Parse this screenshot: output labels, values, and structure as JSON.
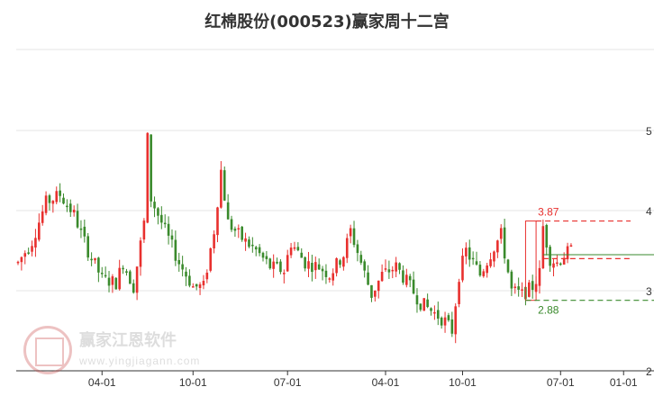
{
  "title": "红棉股份(000523)赢家周十二宫",
  "watermark": {
    "name": "赢家江恩软件",
    "url": "www.yingjiagann.com"
  },
  "colors": {
    "up": "#e8302e",
    "down": "#3a8a2c",
    "resistance": "#e8302e",
    "support": "#3a8a2c"
  },
  "chart_data": {
    "type": "candlestick",
    "ylim": [
      2,
      5.5
    ],
    "y_ticks": [
      {
        "value": 5,
        "label": "5"
      },
      {
        "value": 4,
        "label": "4"
      },
      {
        "value": 3,
        "label": "3"
      },
      {
        "value": 2,
        "label": "2"
      }
    ],
    "x_ticks": [
      "04-01",
      "10-01",
      "07-01",
      "04-01",
      "10-01",
      "07-01",
      "01-01"
    ],
    "x_tick_index": [
      24,
      50,
      77,
      105,
      127,
      155,
      173
    ],
    "n_periods": 176,
    "annotations": {
      "resistance": {
        "label": "3.87",
        "value": 3.87
      },
      "support": {
        "label": "2.88",
        "value": 2.88
      },
      "mid_line": {
        "value": 3.4
      },
      "current_line": {
        "value": 3.45
      }
    },
    "price_anchors": [
      [
        0,
        3.35
      ],
      [
        4,
        3.62
      ],
      [
        8,
        4.1
      ],
      [
        12,
        4.2
      ],
      [
        16,
        3.95
      ],
      [
        20,
        3.5
      ],
      [
        24,
        3.15
      ],
      [
        28,
        3.1
      ],
      [
        30,
        3.35
      ],
      [
        33,
        3.05
      ],
      [
        36,
        3.85
      ],
      [
        37,
        4.9
      ],
      [
        38,
        4.15
      ],
      [
        42,
        3.75
      ],
      [
        46,
        3.35
      ],
      [
        50,
        3.05
      ],
      [
        53,
        3.05
      ],
      [
        56,
        3.75
      ],
      [
        58,
        4.5
      ],
      [
        60,
        3.85
      ],
      [
        64,
        3.65
      ],
      [
        68,
        3.5
      ],
      [
        72,
        3.3
      ],
      [
        76,
        3.25
      ],
      [
        78,
        3.6
      ],
      [
        82,
        3.35
      ],
      [
        86,
        3.3
      ],
      [
        89,
        3.2
      ],
      [
        93,
        3.45
      ],
      [
        95,
        3.75
      ],
      [
        98,
        3.35
      ],
      [
        101,
        2.95
      ],
      [
        104,
        3.2
      ],
      [
        108,
        3.3
      ],
      [
        112,
        3.05
      ],
      [
        115,
        2.85
      ],
      [
        119,
        2.72
      ],
      [
        122,
        2.62
      ],
      [
        124,
        2.5
      ],
      [
        126,
        3.2
      ],
      [
        128,
        3.5
      ],
      [
        132,
        3.2
      ],
      [
        136,
        3.55
      ],
      [
        138,
        3.7
      ],
      [
        141,
        3.0
      ],
      [
        144,
        2.95
      ],
      [
        147,
        3.05
      ],
      [
        149,
        3.22
      ],
      [
        150,
        3.8
      ],
      [
        152,
        3.4
      ],
      [
        154,
        3.35
      ],
      [
        156,
        3.45
      ],
      [
        158,
        3.5
      ]
    ]
  }
}
